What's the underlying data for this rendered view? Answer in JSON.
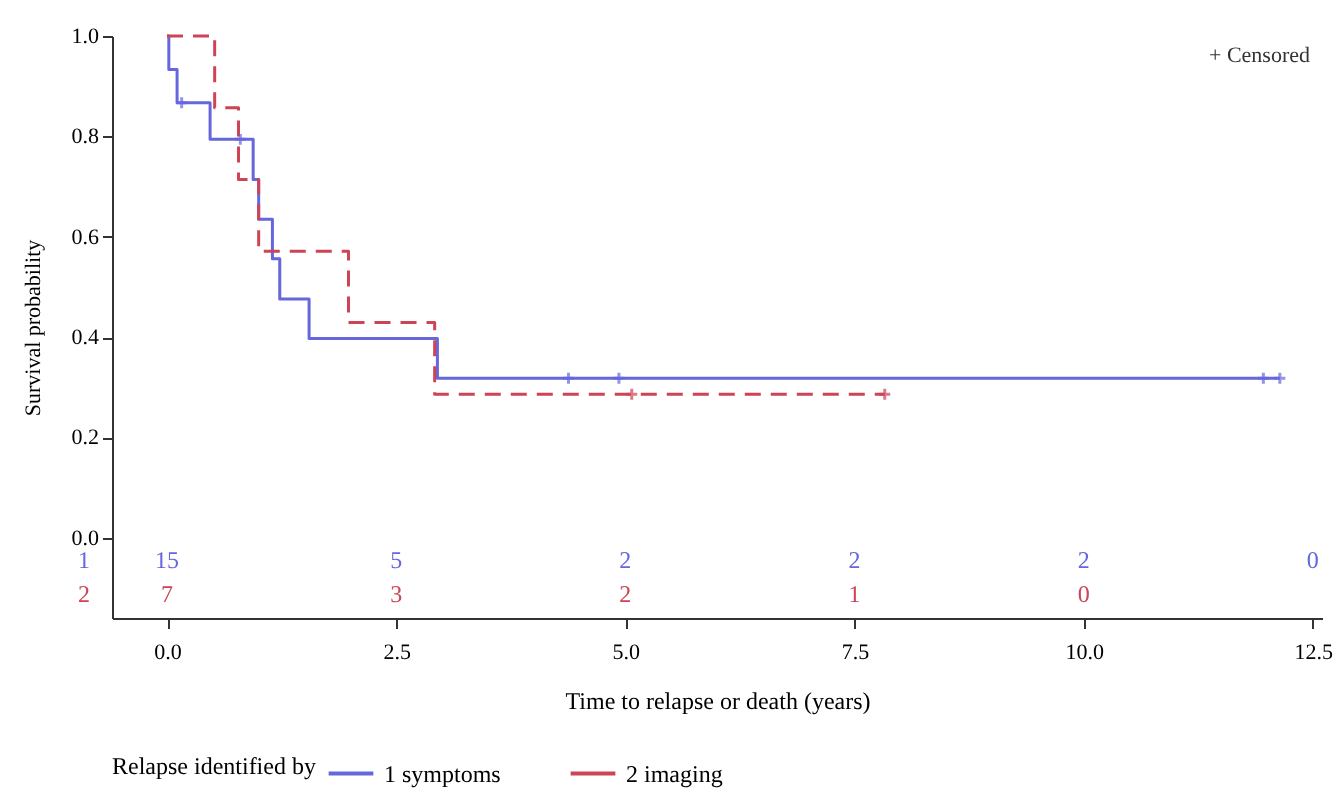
{
  "chart_data": {
    "type": "step",
    "xlabel": "Time to relapse or death      (years)",
    "ylabel": "Survival probability",
    "legend_title": "Relapse identified by",
    "legend": "bottom",
    "grid": false,
    "xlim": [
      -0.6,
      12.6
    ],
    "xticks": [
      {
        "value": 0,
        "label": "0.0"
      },
      2.5,
      {
        "value": 5,
        "label": "5.0"
      },
      7.5,
      {
        "value": 10,
        "label": "10.0"
      },
      12.5
    ],
    "ylim": [
      -0.16,
      1.0
    ],
    "yticks": [
      {
        "value": 0,
        "label": "0.0"
      },
      0.2,
      0.4,
      0.6,
      0.8,
      {
        "value": 1,
        "label": "1.0"
      }
    ],
    "series": [
      {
        "name": "1 symptoms",
        "type": "step",
        "color": "#6666dd",
        "line_style": "solid",
        "x": [
          0,
          0.02,
          0.11,
          0.47,
          0.94,
          1.0,
          1.15,
          1.23,
          1.55,
          2.95,
          12.14
        ],
        "values": [
          1.0,
          0.933,
          0.867,
          0.794,
          0.714,
          0.635,
          0.556,
          0.476,
          0.397,
          0.318,
          0.318
        ]
      },
      {
        "name": "2 imaging",
        "type": "step",
        "color": "#cc4455",
        "line_style": "dashed",
        "x": [
          0,
          0.52,
          0.78,
          1.0,
          1.98,
          2.92,
          7.83
        ],
        "values": [
          1.0,
          0.857,
          0.714,
          0.571,
          0.429,
          0.286,
          0.286
        ]
      },
      {
        "type": "scatter",
        "marker": "cross",
        "color": "#6666dd",
        "x": [
          0.16,
          0.8,
          4.38,
          4.93,
          11.96,
          12.14
        ],
        "values": [
          0.867,
          0.794,
          0.318,
          0.318,
          0.318,
          0.318
        ]
      },
      {
        "type": "scatter",
        "marker": "cross",
        "color": "#cc4455",
        "x": [
          5.07,
          7.83
        ],
        "values": [
          0.286,
          0.286
        ]
      }
    ],
    "annotations": [
      "+ Censored",
      "1",
      "15",
      "5",
      "2",
      "2",
      "2",
      "0",
      "2",
      "7",
      "3",
      "2",
      "1",
      "0"
    ]
  }
}
